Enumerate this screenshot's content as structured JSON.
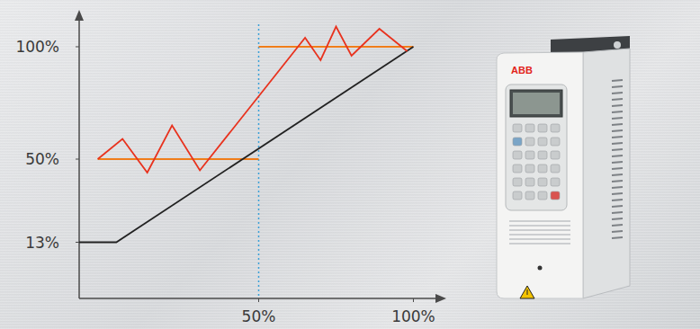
{
  "chart_data": {
    "type": "line",
    "xlim": [
      -8,
      108
    ],
    "ylim": [
      -12,
      110
    ],
    "xticks": [
      {
        "value": 50,
        "label": "50%"
      },
      {
        "value": 100,
        "label": "100%"
      }
    ],
    "yticks": [
      {
        "value": 13,
        "label": "13%"
      },
      {
        "value": 50,
        "label": "50%"
      },
      {
        "value": 100,
        "label": "100%"
      }
    ],
    "grid": false,
    "series": [
      {
        "color": "#f07d1a",
        "x": [
          -2,
          50
        ],
        "values": [
          50,
          50
        ]
      },
      {
        "color": "#f07d1a",
        "x": [
          50,
          100
        ],
        "values": [
          100,
          100
        ]
      },
      {
        "color": "#222222",
        "x": [
          -8,
          4,
          100
        ],
        "values": [
          13,
          13,
          100
        ]
      },
      {
        "color": "#e8321e",
        "x": [
          -2,
          6,
          14,
          22,
          31,
          65,
          70,
          75,
          80,
          89,
          98
        ],
        "values": [
          50,
          59,
          44,
          65,
          45,
          104,
          94,
          109,
          96,
          108,
          98
        ]
      }
    ],
    "annotations": [
      {
        "type": "vline",
        "x": 50,
        "color": "#3aa0d8",
        "line_style": "dotted"
      }
    ]
  },
  "device": {
    "brand": "ABB"
  }
}
